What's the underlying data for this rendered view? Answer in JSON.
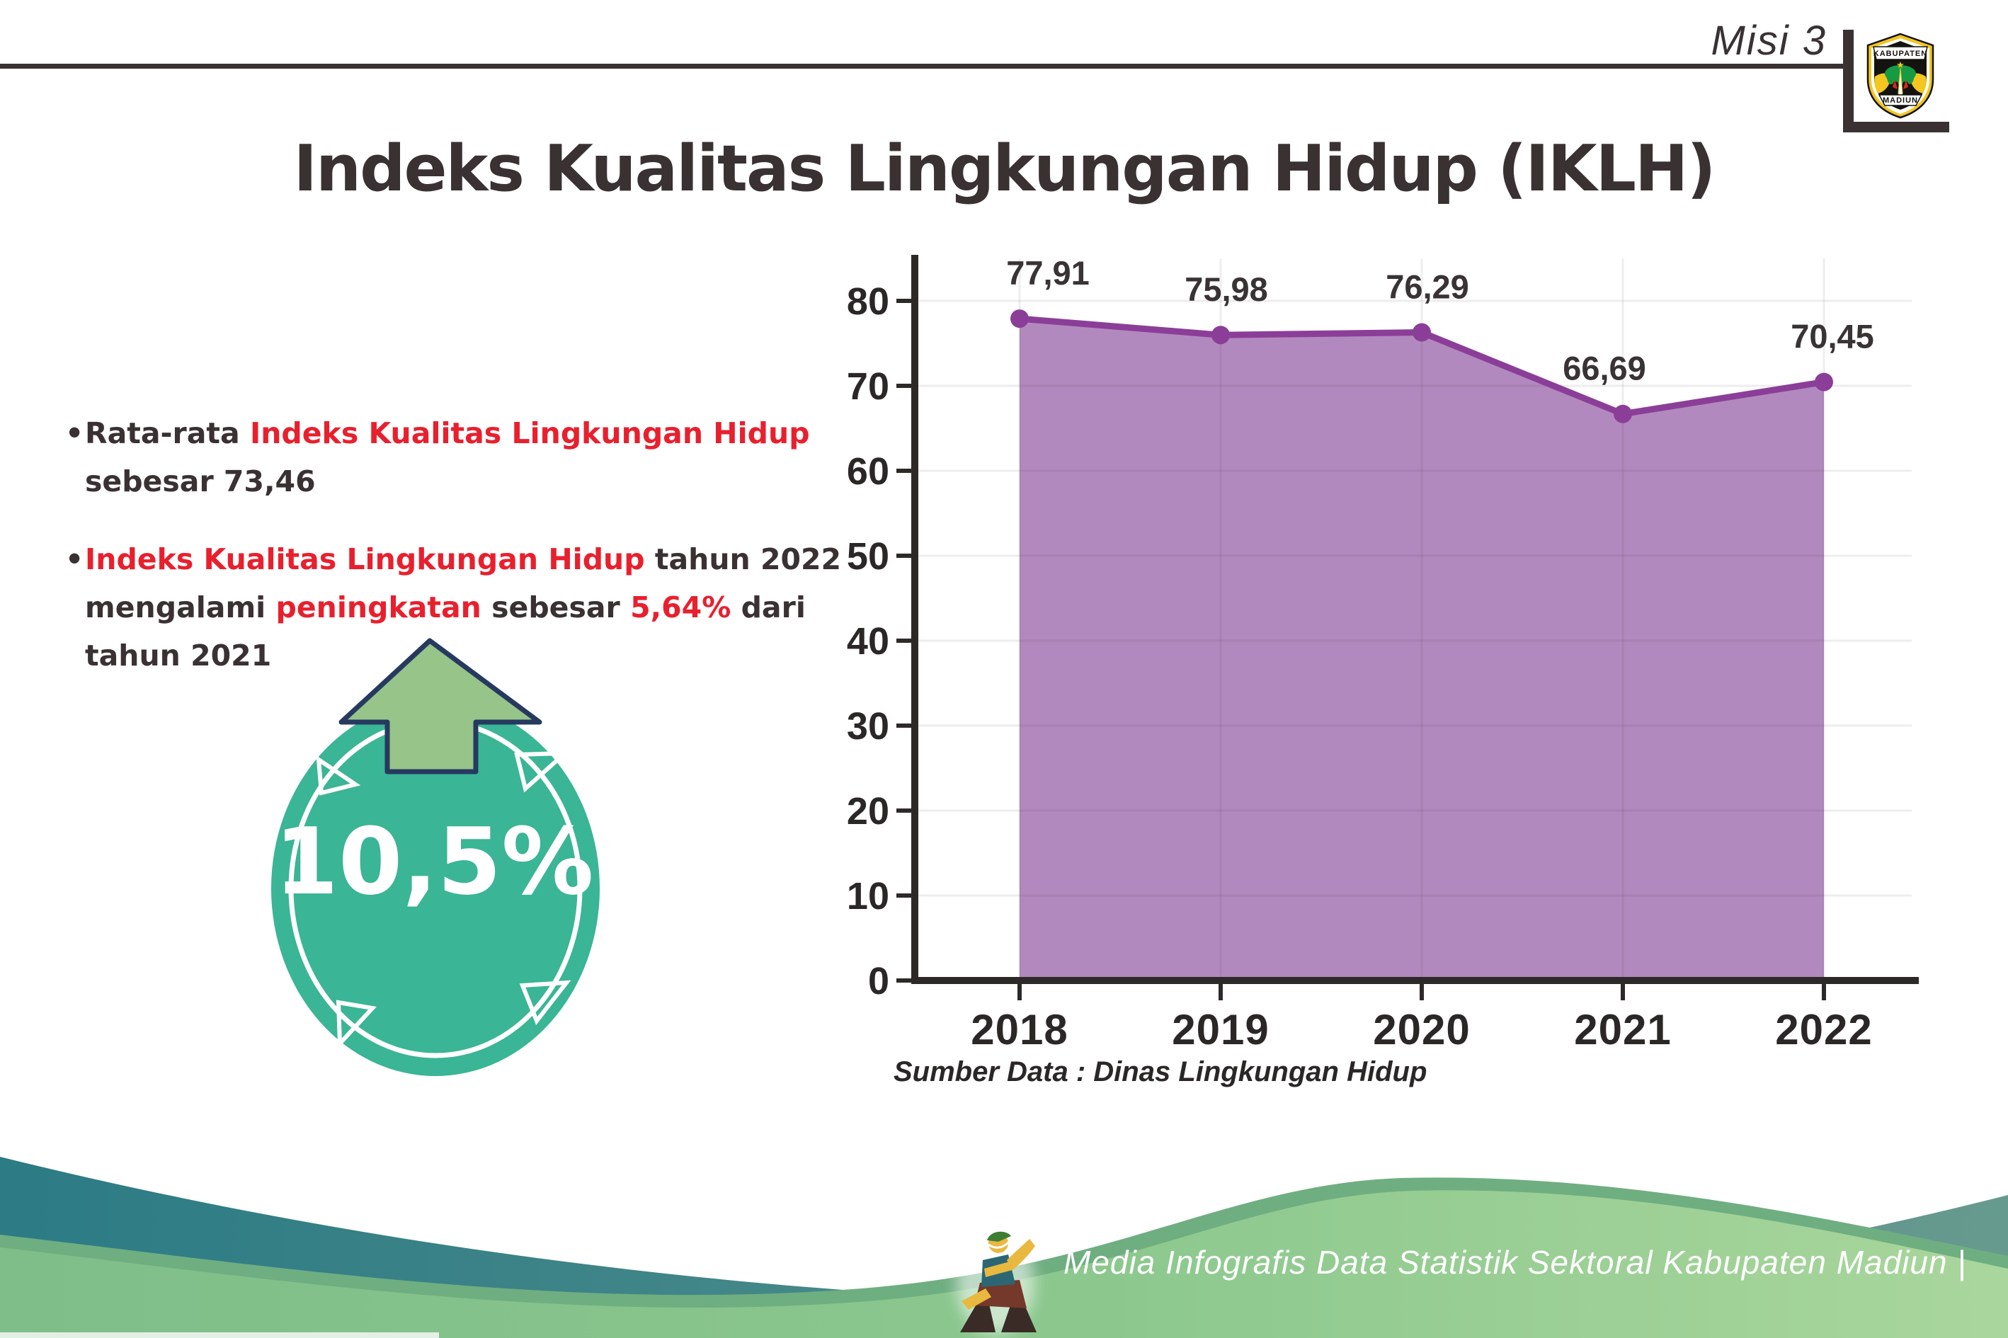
{
  "header": {
    "misi_label": "Misi 3",
    "title": "Indeks Kualitas Lingkungan Hidup (IKLH)",
    "logo": {
      "top": "KABUPATEN",
      "bottom": "MADIUN"
    }
  },
  "bullets": {
    "b1": [
      {
        "t": "Rata-rata ",
        "c": "dark"
      },
      {
        "t": "Indeks Kualitas Lingkungan Hidup",
        "c": "red"
      },
      {
        "t": " sebesar 73,46",
        "c": "dark"
      }
    ],
    "b2": [
      {
        "t": "Indeks Kualitas Lingkungan Hidup",
        "c": "red"
      },
      {
        "t": " tahun 2022 mengalami ",
        "c": "dark"
      },
      {
        "t": "peningkatan",
        "c": "red"
      },
      {
        "t": " sebesar ",
        "c": "dark"
      },
      {
        "t": "5,64%",
        "c": "red"
      },
      {
        "t": " dari tahun 2021",
        "c": "dark"
      }
    ]
  },
  "badge": {
    "value": "10,5%"
  },
  "chart_data": {
    "type": "area",
    "categories": [
      "2018",
      "2019",
      "2020",
      "2021",
      "2022"
    ],
    "values": [
      77.91,
      75.98,
      76.29,
      66.69,
      70.45
    ],
    "value_labels": [
      "77,91",
      "75,98",
      "76,29",
      "66,69",
      "70,45"
    ],
    "ylim": [
      0,
      86
    ],
    "yticks": [
      0,
      10,
      20,
      30,
      40,
      50,
      60,
      70,
      80
    ],
    "grid": true,
    "legend": "none",
    "xlabel": "",
    "ylabel": "",
    "source_note": "Sumber Data : Dinas Lingkungan Hidup"
  },
  "footer": {
    "credit": "Media Infografis Data Statistik Sektoral Kabupaten Madiun |"
  },
  "colors": {
    "accent_red": "#e8202e",
    "text_dark": "#3a3132",
    "badge_teal": "#3ab595",
    "arrow_green": "#97c489",
    "arrow_outline": "#263a60",
    "chart_line": "#8b3e98",
    "chart_fill": "#b289be",
    "axis_dark": "#2e2929",
    "wave_teal": "#2c7b85",
    "wave_green": "#8cc88e"
  }
}
